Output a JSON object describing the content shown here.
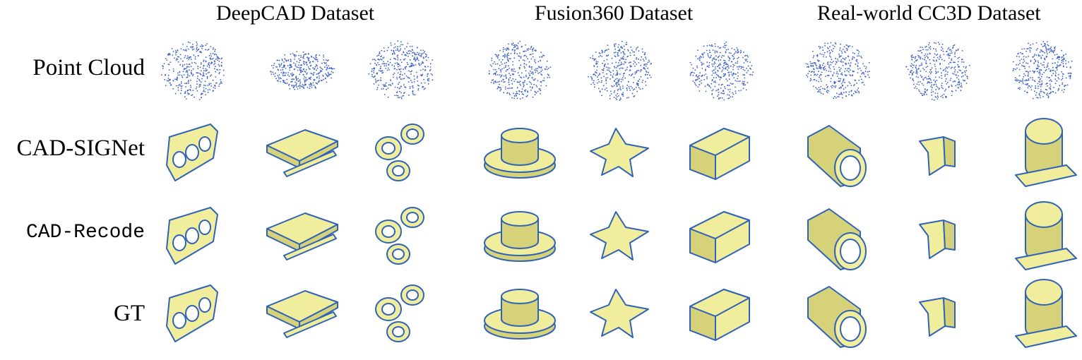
{
  "headers": [
    "DeepCAD Dataset",
    "Fusion360 Dataset",
    "Real-world CC3D Dataset"
  ],
  "rows": [
    {
      "label": "Point Cloud",
      "kind": "points"
    },
    {
      "label": "CAD-SIGNet",
      "kind": "mesh"
    },
    {
      "label": "CAD-Recode",
      "kind": "mesh"
    },
    {
      "label": "GT",
      "kind": "mesh"
    }
  ],
  "colors": {
    "point": "#3b5fc4",
    "face": "#f0ee9c",
    "face_dark": "#d6d27a",
    "edge": "#2f62b8"
  }
}
